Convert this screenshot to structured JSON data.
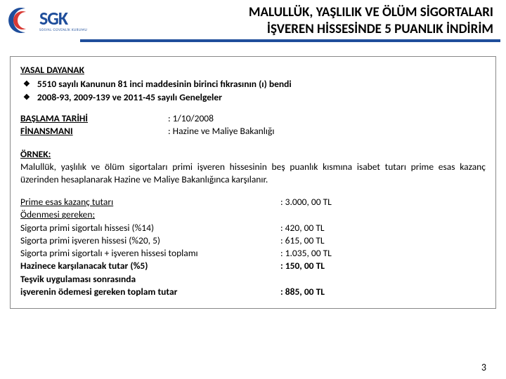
{
  "logo": {
    "text": "SGK",
    "sub": "SOSYAL GÜVENLİK KURUMU",
    "crescent_outer": "#1f4e9b",
    "crescent_inner": "#d93a34"
  },
  "title": {
    "line1": "MALULLÜK, YAŞLILIK VE ÖLÜM SİGORTALARI",
    "line2": "İŞVEREN HİSSESİNDE 5 PUANLIK İNDİRİM",
    "underline_color": "#1f4e9b"
  },
  "legal": {
    "heading": "YASAL DAYANAK",
    "items": [
      "5510 sayılı Kanunun 81 inci maddesinin birinci fıkrasının (ı) bendi",
      "2008-93, 2009-139 ve 2011-45 sayılı Genelgeler"
    ]
  },
  "kv": {
    "start_label": "BAŞLAMA TARİHİ",
    "start_value": "1/10/2008",
    "finance_label": "FİNANSMANI",
    "finance_value": "Hazine ve Maliye Bakanlığı"
  },
  "example": {
    "heading": "ÖRNEK:",
    "text": "Malullük, yaşlılık ve ölüm sigortaları primi işveren hissesinin beş puanlık kısmına isabet tutarı prime esas kazanç üzerinden hesaplanarak Hazine ve Maliye Bakanlığınca karşılanır."
  },
  "amounts": {
    "rows": [
      {
        "label": "Prime esas kazanç tutarı",
        "value": "3.000, 00 TL",
        "label_underline": true
      },
      {
        "label": "Ödenmesi gereken;",
        "value": "",
        "label_underline": true
      },
      {
        "label": "Sigorta primi sigortalı hissesi (%14)",
        "value": "420, 00 TL"
      },
      {
        "label": "Sigorta primi işveren hissesi (%20, 5)",
        "value": "615, 00  TL"
      },
      {
        "label": "Sigorta primi sigortalı + işveren hissesi toplamı",
        "value": "1.035, 00  TL"
      },
      {
        "label": "Hazinece karşılanacak tutar (%5)",
        "value": "150, 00 TL",
        "bold": true
      }
    ],
    "final_label1": "Teşvik uygulaması sonrasında",
    "final_label2": "işverenin ödemesi gereken toplam tutar",
    "final_value": "885, 00 TL",
    "final_value_prefix": " : "
  },
  "page_number": "3"
}
